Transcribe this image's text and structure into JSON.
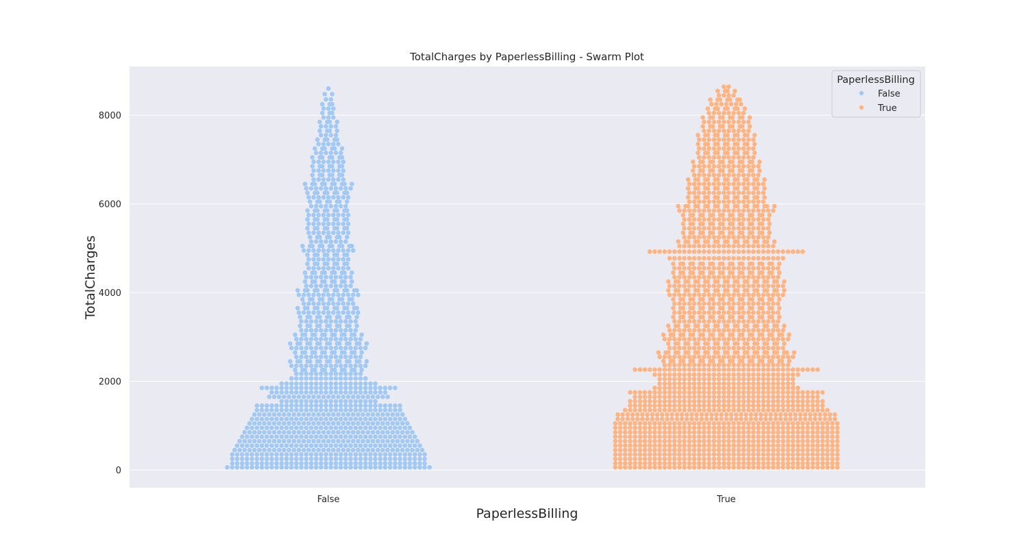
{
  "chart_data": {
    "type": "scatter",
    "subtype": "swarm",
    "title": "TotalCharges by PaperlessBilling - Swarm Plot",
    "xlabel": "PaperlessBilling",
    "ylabel": "TotalCharges",
    "categories": [
      "False",
      "True"
    ],
    "ylim": [
      -400,
      9100
    ],
    "yticks": [
      0,
      2000,
      4000,
      6000,
      8000
    ],
    "grid": true,
    "legend": {
      "title": "PaperlessBilling",
      "placement": "top-right",
      "entries": [
        "False",
        "True"
      ]
    },
    "series": [
      {
        "name": "False",
        "category": "False",
        "color": "#a1c9f4",
        "min": 19,
        "max": 8670,
        "bins": [
          {
            "y": 50,
            "count": 42
          },
          {
            "y": 150,
            "count": 40
          },
          {
            "y": 250,
            "count": 40
          },
          {
            "y": 350,
            "count": 40
          },
          {
            "y": 450,
            "count": 39
          },
          {
            "y": 550,
            "count": 38
          },
          {
            "y": 650,
            "count": 37
          },
          {
            "y": 750,
            "count": 36
          },
          {
            "y": 850,
            "count": 35
          },
          {
            "y": 950,
            "count": 34
          },
          {
            "y": 1050,
            "count": 33
          },
          {
            "y": 1150,
            "count": 32
          },
          {
            "y": 1250,
            "count": 31
          },
          {
            "y": 1350,
            "count": 30
          },
          {
            "y": 1450,
            "count": 30
          },
          {
            "y": 1550,
            "count": 20
          },
          {
            "y": 1650,
            "count": 25
          },
          {
            "y": 1750,
            "count": 24
          },
          {
            "y": 1850,
            "count": 28
          },
          {
            "y": 1950,
            "count": 20
          },
          {
            "y": 2050,
            "count": 16
          },
          {
            "y": 2200,
            "count": 14
          },
          {
            "y": 2400,
            "count": 16
          },
          {
            "y": 2600,
            "count": 14
          },
          {
            "y": 2800,
            "count": 16
          },
          {
            "y": 3000,
            "count": 14
          },
          {
            "y": 3200,
            "count": 12
          },
          {
            "y": 3400,
            "count": 12
          },
          {
            "y": 3600,
            "count": 13
          },
          {
            "y": 3800,
            "count": 11
          },
          {
            "y": 4000,
            "count": 13
          },
          {
            "y": 4200,
            "count": 10
          },
          {
            "y": 4400,
            "count": 10
          },
          {
            "y": 4600,
            "count": 9
          },
          {
            "y": 4800,
            "count": 9
          },
          {
            "y": 5000,
            "count": 11
          },
          {
            "y": 5200,
            "count": 8
          },
          {
            "y": 5400,
            "count": 9
          },
          {
            "y": 5600,
            "count": 9
          },
          {
            "y": 5800,
            "count": 9
          },
          {
            "y": 6000,
            "count": 8
          },
          {
            "y": 6200,
            "count": 9
          },
          {
            "y": 6400,
            "count": 10
          },
          {
            "y": 6600,
            "count": 7
          },
          {
            "y": 6800,
            "count": 7
          },
          {
            "y": 7000,
            "count": 7
          },
          {
            "y": 7200,
            "count": 6
          },
          {
            "y": 7400,
            "count": 5
          },
          {
            "y": 7600,
            "count": 4
          },
          {
            "y": 7800,
            "count": 4
          },
          {
            "y": 8000,
            "count": 3
          },
          {
            "y": 8200,
            "count": 3
          },
          {
            "y": 8400,
            "count": 2
          },
          {
            "y": 8670,
            "count": 1
          }
        ]
      },
      {
        "name": "True",
        "category": "True",
        "color": "#ffb482",
        "min": 19,
        "max": 8690,
        "bins": [
          {
            "y": 50,
            "count": 46
          },
          {
            "y": 150,
            "count": 46
          },
          {
            "y": 250,
            "count": 46
          },
          {
            "y": 350,
            "count": 46
          },
          {
            "y": 450,
            "count": 46
          },
          {
            "y": 550,
            "count": 46
          },
          {
            "y": 650,
            "count": 46
          },
          {
            "y": 750,
            "count": 46
          },
          {
            "y": 850,
            "count": 46
          },
          {
            "y": 950,
            "count": 46
          },
          {
            "y": 1050,
            "count": 46
          },
          {
            "y": 1150,
            "count": 45
          },
          {
            "y": 1250,
            "count": 45
          },
          {
            "y": 1350,
            "count": 42
          },
          {
            "y": 1450,
            "count": 40
          },
          {
            "y": 1550,
            "count": 40
          },
          {
            "y": 1650,
            "count": 38
          },
          {
            "y": 1750,
            "count": 40
          },
          {
            "y": 1850,
            "count": 30
          },
          {
            "y": 1950,
            "count": 28
          },
          {
            "y": 2050,
            "count": 28
          },
          {
            "y": 2150,
            "count": 30
          },
          {
            "y": 2250,
            "count": 38
          },
          {
            "y": 2400,
            "count": 26
          },
          {
            "y": 2600,
            "count": 28
          },
          {
            "y": 2800,
            "count": 24
          },
          {
            "y": 3000,
            "count": 26
          },
          {
            "y": 3200,
            "count": 24
          },
          {
            "y": 3400,
            "count": 22
          },
          {
            "y": 3600,
            "count": 22
          },
          {
            "y": 3800,
            "count": 22
          },
          {
            "y": 4000,
            "count": 24
          },
          {
            "y": 4200,
            "count": 24
          },
          {
            "y": 4400,
            "count": 22
          },
          {
            "y": 4600,
            "count": 22
          },
          {
            "y": 4800,
            "count": 24
          },
          {
            "y": 4900,
            "count": 32
          },
          {
            "y": 5100,
            "count": 20
          },
          {
            "y": 5300,
            "count": 18
          },
          {
            "y": 5500,
            "count": 18
          },
          {
            "y": 5700,
            "count": 18
          },
          {
            "y": 5900,
            "count": 20
          },
          {
            "y": 6100,
            "count": 16
          },
          {
            "y": 6300,
            "count": 16
          },
          {
            "y": 6500,
            "count": 16
          },
          {
            "y": 6700,
            "count": 14
          },
          {
            "y": 6900,
            "count": 14
          },
          {
            "y": 7100,
            "count": 12
          },
          {
            "y": 7300,
            "count": 12
          },
          {
            "y": 7500,
            "count": 12
          },
          {
            "y": 7700,
            "count": 10
          },
          {
            "y": 7900,
            "count": 10
          },
          {
            "y": 8100,
            "count": 8
          },
          {
            "y": 8300,
            "count": 7
          },
          {
            "y": 8500,
            "count": 4
          },
          {
            "y": 8690,
            "count": 2
          }
        ]
      }
    ]
  }
}
